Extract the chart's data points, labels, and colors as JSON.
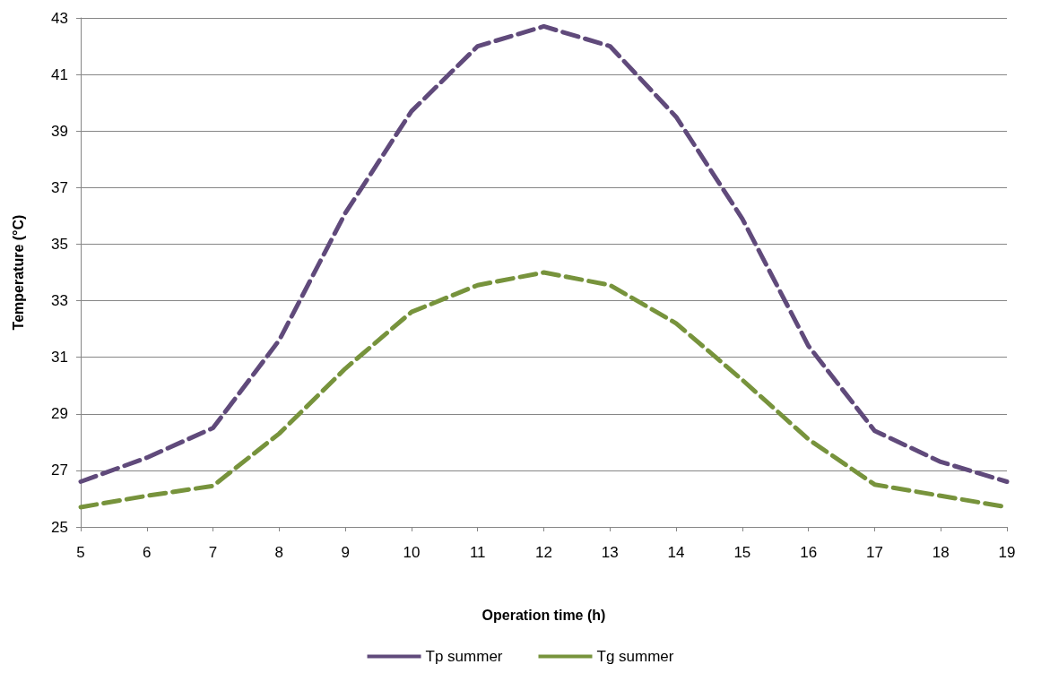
{
  "chart_data": {
    "type": "line",
    "xlabel": "Operation time (h)",
    "ylabel": "Temperature (°C)",
    "categories": [
      "5",
      "6",
      "7",
      "8",
      "9",
      "10",
      "11",
      "12",
      "13",
      "14",
      "15",
      "16",
      "17",
      "18",
      "19"
    ],
    "series": [
      {
        "name": "Tp summer",
        "color": "#604a7b",
        "line_style": "dashed",
        "values": [
          26.6,
          27.45,
          28.5,
          31.6,
          36.1,
          39.7,
          42.0,
          42.7,
          42.0,
          39.5,
          35.9,
          31.4,
          28.4,
          27.3,
          26.6
        ]
      },
      {
        "name": "Tg summer",
        "color": "#77933c",
        "line_style": "dashed",
        "values": [
          25.7,
          26.1,
          26.45,
          28.3,
          30.6,
          32.6,
          33.55,
          34.0,
          33.55,
          32.2,
          30.2,
          28.1,
          26.5,
          26.1,
          25.7
        ]
      }
    ],
    "ylim": [
      25,
      43
    ],
    "yticks": [
      25,
      27,
      29,
      31,
      33,
      35,
      37,
      39,
      41,
      43
    ],
    "grid": "y",
    "legend": "bottom",
    "marker": "none"
  }
}
